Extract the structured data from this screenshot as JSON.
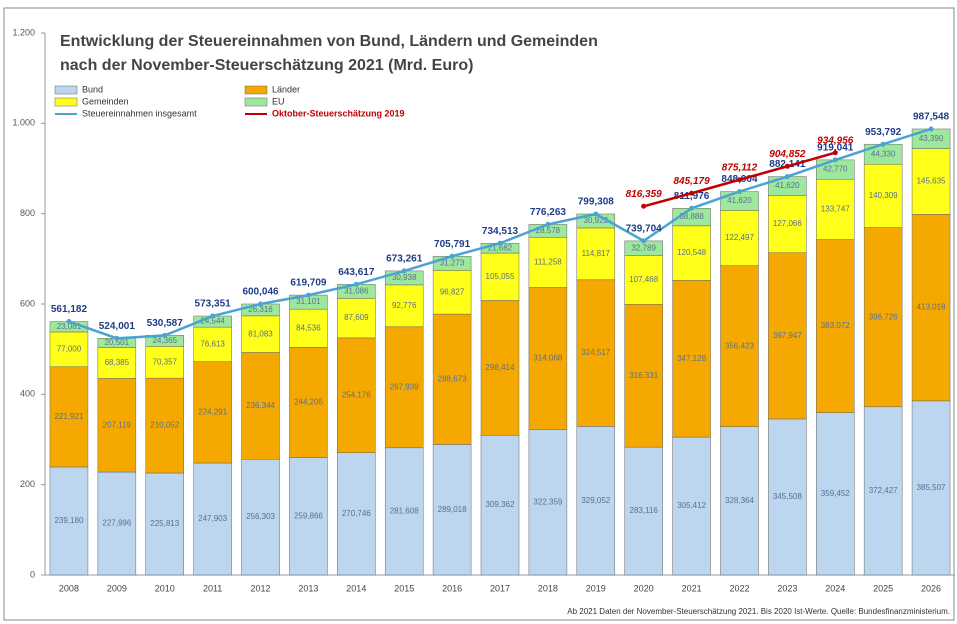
{
  "chart_data": {
    "type": "bar",
    "stacked": true,
    "title": "Entwicklung der Steuereinnahmen von Bund, Ländern und Gemeinden",
    "subtitle": "nach der November-Steuerschätzung 2021 (Mrd. Euro)",
    "footnote": "Ab 2021 Daten der November-Steuerschätzung 2021. Bis 2020 Ist-Werte. Quelle: Bundesfinanzministerium.",
    "categories": [
      "2008",
      "2009",
      "2010",
      "2011",
      "2012",
      "2013",
      "2014",
      "2015",
      "2016",
      "2017",
      "2018",
      "2019",
      "2020",
      "2021",
      "2022",
      "2023",
      "2024",
      "2025",
      "2026"
    ],
    "ylim": [
      0,
      1200
    ],
    "yticks": [
      0,
      200,
      400,
      600,
      800,
      {
        "value": 1000,
        "label": "1.000"
      },
      {
        "value": 1200,
        "label": "1.200"
      }
    ],
    "series": [
      {
        "name": "Bund",
        "color": "#bcd6f0",
        "values": [
          239.18,
          227.996,
          225.813,
          247.903,
          256.303,
          259.866,
          270.746,
          281.608,
          289.018,
          309.362,
          322.359,
          329.052,
          283.116,
          305.412,
          328.364,
          345.508,
          359.452,
          372.427,
          385.507
        ],
        "value_labels": [
          "239,180",
          "227,996",
          "225,813",
          "247,903",
          "256,303",
          "259,866",
          "270,746",
          "281,608",
          "289,018",
          "309,362",
          "322,359",
          "329,052",
          "283,116",
          "305,412",
          "328,364",
          "345,508",
          "359,452",
          "372,427",
          "385,507"
        ]
      },
      {
        "name": "Länder",
        "color": "#f5a900",
        "values": [
          221.921,
          207.119,
          210.052,
          224.291,
          236.344,
          244.206,
          254.176,
          267.939,
          288.673,
          298.414,
          314.068,
          324.517,
          316.331,
          347.128,
          356.423,
          367.947,
          383.072,
          396.726,
          413.018
        ],
        "value_labels": [
          "221,921",
          "207,119",
          "210,052",
          "224,291",
          "236,344",
          "244,206",
          "254,176",
          "267,939",
          "288,673",
          "298,414",
          "314,068",
          "324,517",
          "316,331",
          "347,128",
          "356,423",
          "367,947",
          "383,072",
          "396,726",
          "413,018"
        ]
      },
      {
        "name": "Gemeinden",
        "color": "#ffff1a",
        "values": [
          77,
          68.385,
          70.357,
          76.613,
          81.083,
          84.536,
          87.609,
          92.776,
          96.827,
          105.055,
          111.258,
          114.817,
          107.468,
          120.548,
          122.497,
          127.066,
          133.747,
          140.309,
          145.635
        ],
        "value_labels": [
          "77,000",
          "68,385",
          "70,357",
          "76,613",
          "81,083",
          "84,536",
          "87,609",
          "92,776",
          "96,827",
          "105,055",
          "111,258",
          "114,817",
          "107,468",
          "120,548",
          "122,497",
          "127,066",
          "133,747",
          "140,309",
          "145,635"
        ]
      },
      {
        "name": "EU",
        "color": "#9ee89e",
        "values": [
          23.081,
          20.501,
          24.365,
          24.544,
          26.316,
          31.101,
          31.086,
          30.938,
          31.273,
          21.682,
          28.578,
          30.922,
          32.789,
          38.888,
          41.62,
          41.62,
          42.77,
          44.33,
          43.39
        ],
        "value_labels": [
          "23,081",
          "20,501",
          "24,365",
          "24,544",
          "26,316",
          "31,101",
          "31,086",
          "30,938",
          "31,273",
          "21,682",
          "28,578",
          "30,922",
          "32,789",
          "38,888",
          "41,620",
          "41,620",
          "42,770",
          "44,330",
          "43,390"
        ]
      },
      {
        "name": "Steuereinnahmen insgesamt",
        "type": "line",
        "color": "#4ba3d3",
        "label_color": "#1f3c88",
        "values": [
          561.182,
          524.001,
          530.587,
          573.351,
          600.046,
          619.709,
          643.617,
          673.261,
          705.791,
          734.513,
          776.263,
          799.308,
          739.704,
          811.976,
          848.904,
          882.141,
          919.041,
          953.792,
          987.548
        ],
        "value_labels": [
          "561,182",
          "524,001",
          "530,587",
          "573,351",
          "600,046",
          "619,709",
          "643,617",
          "673,261",
          "705,791",
          "734,513",
          "776,263",
          "799,308",
          "739,704",
          "811,976",
          "848,904",
          "882,141",
          "919,041",
          "953,792",
          "987,548"
        ]
      },
      {
        "name": "Oktober-Steuerschätzung 2019",
        "type": "line",
        "color": "#c00000",
        "label_color": "#c00000",
        "values": [
          null,
          null,
          null,
          null,
          null,
          null,
          null,
          null,
          null,
          null,
          null,
          null,
          816.359,
          845.179,
          875.112,
          904.852,
          934.956,
          null,
          null
        ],
        "value_labels": [
          null,
          null,
          null,
          null,
          null,
          null,
          null,
          null,
          null,
          null,
          null,
          null,
          "816,359",
          "845,179",
          "875,112",
          "904,852",
          "934,956",
          null,
          null
        ]
      }
    ]
  }
}
